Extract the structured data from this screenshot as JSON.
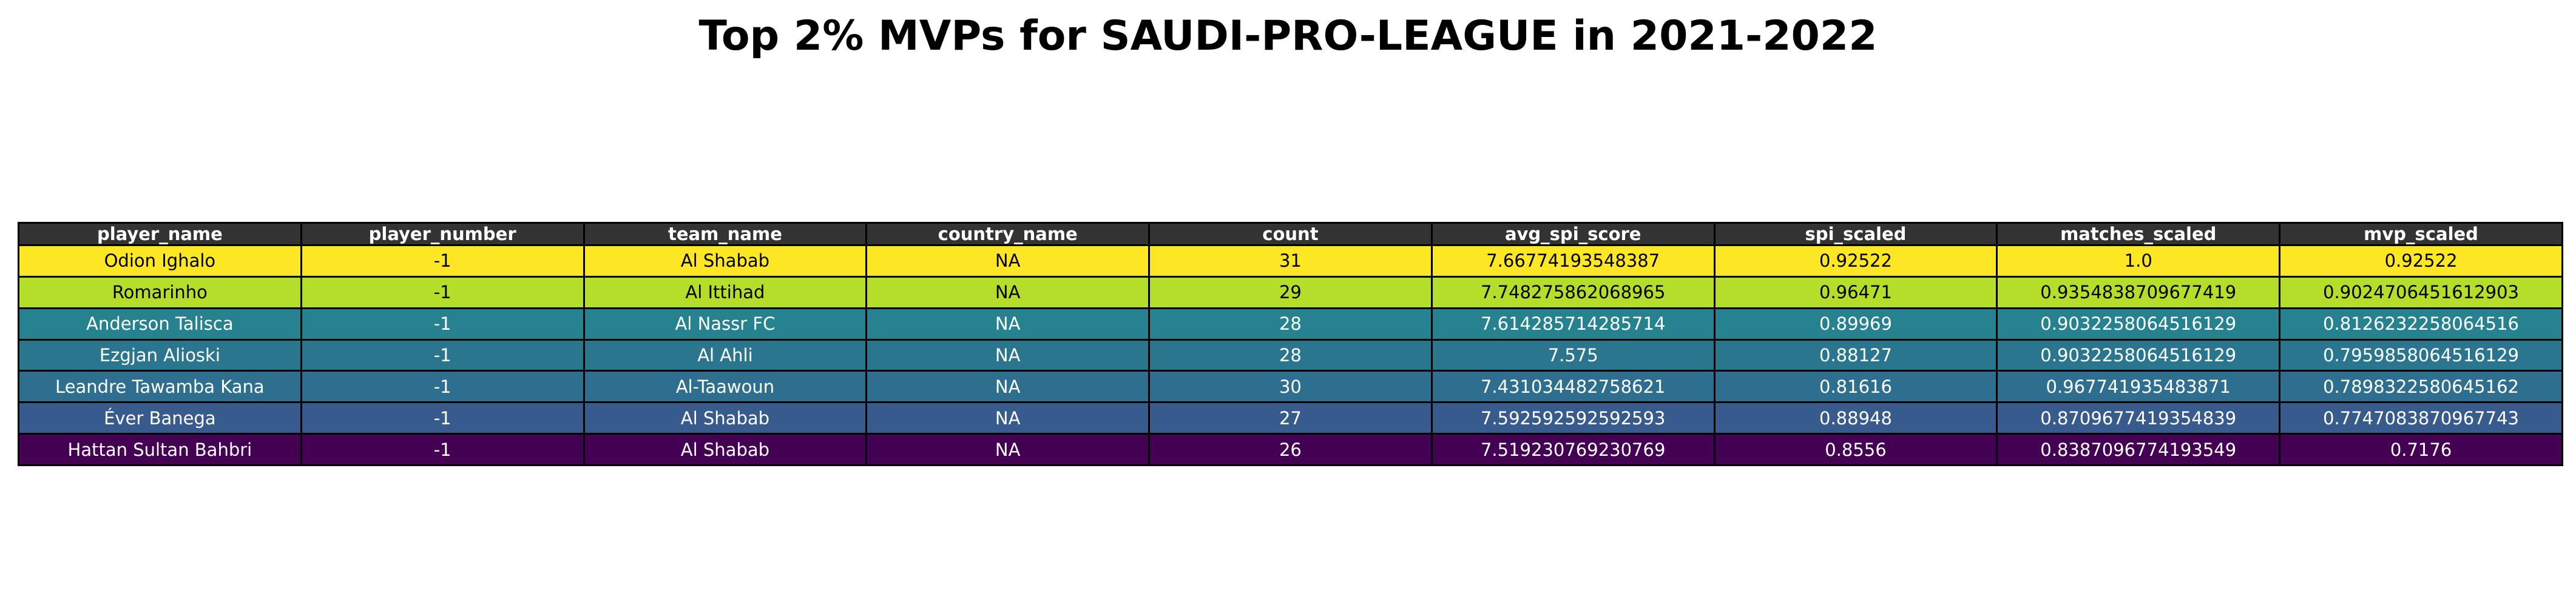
{
  "chart_data": {
    "type": "table",
    "title": "Top 2% MVPs for SAUDI-PRO-LEAGUE in 2021-2022",
    "header_color": "#333333",
    "columns": [
      "player_name",
      "player_number",
      "team_name",
      "country_name",
      "count",
      "avg_spi_score",
      "spi_scaled",
      "matches_scaled",
      "mvp_scaled"
    ],
    "rows": [
      {
        "cells": [
          "Odion Ighalo",
          "-1",
          "Al Shabab",
          "NA",
          "31",
          "7.66774193548387",
          "0.92522",
          "1.0",
          "0.92522"
        ],
        "color": "#fde725",
        "text_color": "#000000"
      },
      {
        "cells": [
          "Romarinho",
          "-1",
          "Al Ittihad",
          "NA",
          "29",
          "7.748275862068965",
          "0.96471",
          "0.9354838709677419",
          "0.9024706451612903"
        ],
        "color": "#b5de2b",
        "text_color": "#000000"
      },
      {
        "cells": [
          "Anderson Talisca",
          "-1",
          "Al Nassr FC",
          "NA",
          "28",
          "7.614285714285714",
          "0.89969",
          "0.9032258064516129",
          "0.8126232258064516"
        ],
        "color": "#26828e",
        "text_color": "#ffffff"
      },
      {
        "cells": [
          "Ezgjan Alioski",
          "-1",
          "Al Ahli",
          "NA",
          "28",
          "7.575",
          "0.88127",
          "0.9032258064516129",
          "0.7959858064516129"
        ],
        "color": "#2a768e",
        "text_color": "#ffffff"
      },
      {
        "cells": [
          "Leandre Tawamba Kana",
          "-1",
          "Al-Taawoun",
          "NA",
          "30",
          "7.431034482758621",
          "0.81616",
          "0.967741935483871",
          "0.7898322580645162"
        ],
        "color": "#2e6e8e",
        "text_color": "#ffffff"
      },
      {
        "cells": [
          "Éver Banega",
          "-1",
          "Al Shabab",
          "NA",
          "27",
          "7.592592592592593",
          "0.88948",
          "0.8709677419354839",
          "0.7747083870967743"
        ],
        "color": "#375b8d",
        "text_color": "#ffffff"
      },
      {
        "cells": [
          "Hattan Sultan Bahbri",
          "-1",
          "Al Shabab",
          "NA",
          "26",
          "7.519230769230769",
          "0.8556",
          "0.8387096774193549",
          "0.7176"
        ],
        "color": "#440154",
        "text_color": "#ffffff"
      }
    ]
  }
}
